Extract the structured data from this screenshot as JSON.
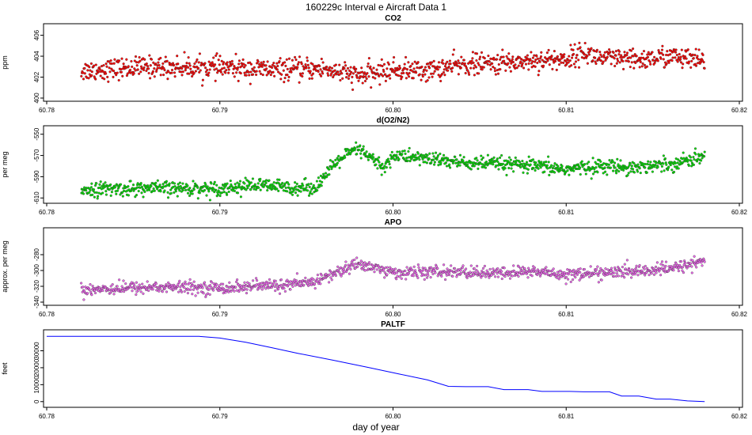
{
  "figure": {
    "title": "160229c   Interval e Aircraft Data 1",
    "xlabel": "day of year"
  },
  "chart_data": [
    {
      "type": "scatter",
      "title": "CO2",
      "ylabel": "ppm",
      "color": "#ff0000",
      "xlim": [
        60.78,
        60.82
      ],
      "ylim": [
        400,
        406.8
      ],
      "xticks": [
        "60.78",
        "60.79",
        "60.80",
        "60.81",
        "60.82"
      ],
      "yticks": [
        "400",
        "402",
        "404",
        "406"
      ],
      "series_x_range": [
        60.782,
        60.818
      ],
      "trend": [
        [
          60.782,
          402.6
        ],
        [
          60.786,
          403.0
        ],
        [
          60.79,
          402.9
        ],
        [
          60.793,
          402.7
        ],
        [
          60.796,
          402.8
        ],
        [
          60.798,
          402.1
        ],
        [
          60.8,
          402.7
        ],
        [
          60.802,
          402.6
        ],
        [
          60.804,
          403.2
        ],
        [
          60.806,
          403.3
        ],
        [
          60.808,
          403.6
        ],
        [
          60.81,
          403.7
        ],
        [
          60.811,
          404.4
        ],
        [
          60.812,
          403.8
        ],
        [
          60.814,
          403.6
        ],
        [
          60.816,
          404.0
        ],
        [
          60.818,
          403.4
        ]
      ],
      "noise": 0.9
    },
    {
      "type": "scatter",
      "title": "d(O2/N2)",
      "ylabel": "per meg",
      "color": "#00dd00",
      "xlim": [
        60.78,
        60.82
      ],
      "ylim": [
        -612,
        -545
      ],
      "xticks": [
        "60.78",
        "60.79",
        "60.80",
        "60.81",
        "60.82"
      ],
      "yticks": [
        "-610",
        "-590",
        "-570",
        "-550"
      ],
      "series_x_range": [
        60.782,
        60.818
      ],
      "trend": [
        [
          60.782,
          -602
        ],
        [
          60.786,
          -601
        ],
        [
          60.79,
          -601
        ],
        [
          60.792,
          -598
        ],
        [
          60.794,
          -600
        ],
        [
          60.7955,
          -600
        ],
        [
          60.797,
          -572
        ],
        [
          60.798,
          -564
        ],
        [
          60.799,
          -576
        ],
        [
          60.7995,
          -582
        ],
        [
          60.8,
          -570
        ],
        [
          60.802,
          -573
        ],
        [
          60.804,
          -577
        ],
        [
          60.806,
          -578
        ],
        [
          60.808,
          -580
        ],
        [
          60.81,
          -583
        ],
        [
          60.812,
          -580
        ],
        [
          60.814,
          -581
        ],
        [
          60.816,
          -578
        ],
        [
          60.818,
          -571
        ]
      ],
      "noise": 6
    },
    {
      "type": "scatter",
      "title": "APO",
      "ylabel": "approx. per meg",
      "color": "#ee66ee",
      "xlim": [
        60.78,
        60.82
      ],
      "ylim": [
        -340,
        -250
      ],
      "xticks": [
        "60.78",
        "60.79",
        "60.80",
        "60.81",
        "60.82"
      ],
      "yticks": [
        "-340",
        "-320",
        "-300",
        "-280"
      ],
      "series_x_range": [
        60.782,
        60.818
      ],
      "trend": [
        [
          60.782,
          -324
        ],
        [
          60.786,
          -321
        ],
        [
          60.79,
          -322
        ],
        [
          60.792,
          -320
        ],
        [
          60.795,
          -317
        ],
        [
          60.7965,
          -305
        ],
        [
          60.798,
          -291
        ],
        [
          60.799,
          -297
        ],
        [
          60.8,
          -303
        ],
        [
          60.802,
          -302
        ],
        [
          60.804,
          -302
        ],
        [
          60.806,
          -304
        ],
        [
          60.808,
          -301
        ],
        [
          60.81,
          -305
        ],
        [
          60.812,
          -303
        ],
        [
          60.814,
          -301
        ],
        [
          60.816,
          -298
        ],
        [
          60.818,
          -287
        ]
      ],
      "noise": 7
    },
    {
      "type": "line",
      "title": "PALTF",
      "ylabel": "feet",
      "color": "#0000ff",
      "xlim": [
        60.78,
        60.82
      ],
      "ylim": [
        -1500,
        40500
      ],
      "xticks": [
        "60.78",
        "60.79",
        "60.80",
        "60.81",
        "60.82"
      ],
      "yticks": [
        "0",
        "10000",
        "20000",
        "30000"
      ],
      "points": [
        [
          60.78,
          38500
        ],
        [
          60.7888,
          38500
        ],
        [
          60.79,
          37500
        ],
        [
          60.7915,
          35000
        ],
        [
          60.793,
          31800
        ],
        [
          60.7945,
          28500
        ],
        [
          60.7965,
          24500
        ],
        [
          60.7985,
          20300
        ],
        [
          60.8003,
          16400
        ],
        [
          60.802,
          12800
        ],
        [
          60.8032,
          9000
        ],
        [
          60.8042,
          8800
        ],
        [
          60.8055,
          8800
        ],
        [
          60.8064,
          7100
        ],
        [
          60.8078,
          7100
        ],
        [
          60.8086,
          6000
        ],
        [
          60.8102,
          6000
        ],
        [
          60.811,
          5800
        ],
        [
          60.8125,
          5800
        ],
        [
          60.8132,
          3300
        ],
        [
          60.8142,
          3300
        ],
        [
          60.8152,
          1500
        ],
        [
          60.816,
          1500
        ],
        [
          60.817,
          400
        ],
        [
          60.818,
          0
        ]
      ]
    }
  ]
}
